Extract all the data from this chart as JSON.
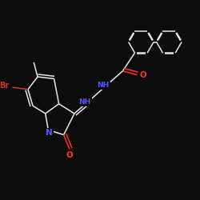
{
  "bg_color": "#0d0d0d",
  "bond_color": "#e8e8e8",
  "atom_colors": {
    "O": "#ff3030",
    "N": "#5555ff",
    "Br": "#cc3333",
    "C": "#e8e8e8"
  },
  "figsize": [
    2.5,
    2.5
  ],
  "dpi": 100
}
